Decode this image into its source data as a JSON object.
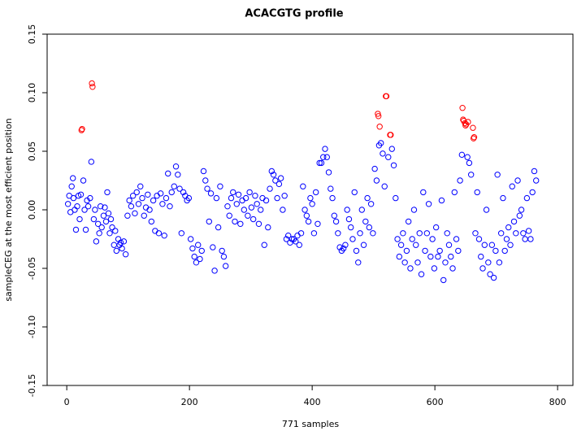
{
  "chart_data": {
    "type": "scatter",
    "title": "ACACGTG profile",
    "xlabel": "771 samples",
    "ylabel": "sampleCEG at the most efficient position",
    "xlim": [
      -32,
      825
    ],
    "ylim": [
      -0.15,
      0.15
    ],
    "xticks": [
      0,
      200,
      400,
      600,
      800
    ],
    "yticks": [
      {
        "value": -0.15,
        "label": "-0.15"
      },
      {
        "value": -0.1,
        "label": "-0.10"
      },
      {
        "value": -0.05,
        "label": "-0.05"
      },
      {
        "value": 0,
        "label": "0.00"
      },
      {
        "value": 0.05,
        "label": "0.05"
      },
      {
        "value": 0.1,
        "label": "0.10"
      },
      {
        "value": 0.15,
        "label": "0.15"
      }
    ],
    "series": [
      {
        "color": "#0000ff",
        "x": [
          2,
          4,
          6,
          8,
          10,
          11,
          13,
          15,
          17,
          19,
          21,
          23,
          27,
          29,
          31,
          33,
          35,
          38,
          40,
          44,
          46,
          48,
          51,
          53,
          55,
          57,
          60,
          62,
          64,
          66,
          68,
          70,
          72,
          74,
          77,
          79,
          81,
          84,
          86,
          88,
          90,
          93,
          96,
          99,
          102,
          105,
          108,
          111,
          114,
          117,
          120,
          123,
          126,
          129,
          132,
          135,
          138,
          141,
          144,
          147,
          150,
          153,
          156,
          159,
          162,
          165,
          168,
          171,
          175,
          178,
          181,
          184,
          187,
          190,
          193,
          196,
          199,
          202,
          205,
          208,
          211,
          214,
          217,
          220,
          223,
          226,
          229,
          232,
          235,
          238,
          241,
          244,
          247,
          250,
          253,
          256,
          259,
          262,
          265,
          268,
          271,
          274,
          277,
          280,
          283,
          286,
          289,
          292,
          295,
          298,
          301,
          304,
          307,
          310,
          313,
          316,
          319,
          322,
          325,
          328,
          331,
          334,
          337,
          340,
          343,
          346,
          349,
          352,
          355,
          358,
          361,
          364,
          367,
          370,
          373,
          376,
          379,
          382,
          385,
          388,
          391,
          394,
          397,
          400,
          403,
          406,
          409,
          412,
          415,
          418,
          421,
          424,
          427,
          430,
          433,
          436,
          439,
          442,
          445,
          448,
          451,
          454,
          457,
          460,
          463,
          466,
          469,
          472,
          475,
          478,
          481,
          484,
          487,
          490,
          493,
          496,
          499,
          502,
          505,
          509,
          512,
          515,
          518,
          524,
          530,
          533,
          536,
          539,
          542,
          545,
          548,
          551,
          554,
          557,
          560,
          563,
          566,
          569,
          572,
          575,
          578,
          581,
          584,
          587,
          590,
          593,
          596,
          599,
          602,
          605,
          608,
          611,
          614,
          617,
          620,
          623,
          626,
          629,
          632,
          635,
          638,
          641,
          644,
          653,
          656,
          659,
          666,
          669,
          672,
          675,
          678,
          681,
          684,
          687,
          690,
          693,
          696,
          699,
          702,
          705,
          708,
          711,
          714,
          717,
          720,
          723,
          726,
          729,
          732,
          735,
          738,
          741,
          744,
          747,
          750,
          753,
          756,
          759,
          762,
          765
        ],
        "values": [
          0.005,
          0.012,
          -0.002,
          0.02,
          0.027,
          0.01,
          0.0,
          -0.017,
          0.003,
          0.012,
          -0.008,
          0.013,
          0.025,
          0.0,
          -0.017,
          0.008,
          0.003,
          0.01,
          0.041,
          -0.008,
          0.0,
          -0.027,
          -0.012,
          -0.02,
          0.003,
          -0.015,
          -0.005,
          0.002,
          -0.01,
          0.015,
          -0.003,
          -0.02,
          -0.008,
          -0.015,
          -0.03,
          -0.018,
          -0.035,
          -0.025,
          -0.03,
          -0.028,
          -0.033,
          -0.027,
          -0.038,
          -0.005,
          0.008,
          0.003,
          0.012,
          -0.003,
          0.015,
          0.005,
          0.02,
          0.01,
          -0.005,
          0.002,
          0.013,
          0.0,
          -0.01,
          0.008,
          -0.018,
          0.012,
          -0.02,
          0.014,
          0.005,
          -0.022,
          0.01,
          0.031,
          0.003,
          0.015,
          0.02,
          0.037,
          0.03,
          0.018,
          -0.02,
          0.015,
          0.012,
          0.008,
          0.01,
          -0.025,
          -0.033,
          -0.04,
          -0.045,
          -0.03,
          -0.042,
          -0.035,
          0.033,
          0.025,
          0.018,
          -0.01,
          0.014,
          -0.032,
          -0.052,
          0.01,
          -0.015,
          0.02,
          -0.035,
          -0.04,
          -0.048,
          0.003,
          -0.005,
          0.01,
          0.015,
          -0.01,
          0.005,
          0.013,
          -0.012,
          0.008,
          0.0,
          0.01,
          -0.005,
          0.015,
          0.002,
          -0.008,
          0.012,
          0.005,
          -0.012,
          0.0,
          0.01,
          -0.03,
          0.008,
          -0.015,
          0.018,
          0.033,
          0.03,
          0.025,
          0.01,
          0.022,
          0.027,
          0.0,
          0.012,
          -0.025,
          -0.022,
          -0.028,
          -0.025,
          -0.025,
          -0.027,
          -0.022,
          -0.03,
          -0.02,
          0.02,
          0.0,
          -0.005,
          -0.01,
          0.01,
          0.005,
          -0.02,
          0.015,
          -0.012,
          0.04,
          0.04,
          0.045,
          0.052,
          0.045,
          0.032,
          0.018,
          0.01,
          -0.005,
          -0.01,
          -0.02,
          -0.032,
          -0.035,
          -0.033,
          -0.03,
          0.0,
          -0.008,
          -0.015,
          -0.025,
          0.015,
          -0.035,
          -0.045,
          -0.02,
          0.0,
          -0.03,
          -0.01,
          0.01,
          -0.015,
          0.005,
          -0.02,
          0.035,
          0.025,
          0.055,
          0.057,
          0.048,
          0.02,
          0.045,
          0.052,
          0.038,
          0.01,
          -0.025,
          -0.04,
          -0.03,
          -0.02,
          -0.045,
          -0.035,
          -0.01,
          -0.05,
          -0.025,
          0.0,
          -0.03,
          -0.045,
          -0.02,
          -0.055,
          0.015,
          -0.035,
          -0.02,
          0.005,
          -0.04,
          -0.025,
          -0.05,
          -0.015,
          -0.04,
          -0.035,
          0.008,
          -0.06,
          -0.045,
          -0.02,
          -0.03,
          -0.04,
          -0.05,
          0.015,
          -0.025,
          -0.035,
          0.025,
          0.047,
          0.045,
          0.04,
          0.03,
          -0.02,
          0.015,
          -0.025,
          -0.04,
          -0.05,
          -0.03,
          0.0,
          -0.045,
          -0.055,
          -0.03,
          -0.058,
          -0.035,
          0.03,
          -0.045,
          -0.02,
          0.01,
          -0.035,
          -0.025,
          -0.015,
          -0.03,
          0.02,
          -0.01,
          -0.02,
          0.025,
          -0.005,
          0.0,
          -0.02,
          -0.025,
          0.01,
          -0.018,
          -0.025,
          0.015,
          0.033,
          0.025
        ]
      },
      {
        "color": "#ff0000",
        "x": [
          24,
          25,
          41,
          42,
          507,
          508,
          510,
          520,
          521,
          527,
          528,
          645,
          646,
          647,
          649,
          650,
          651,
          654,
          662,
          663,
          664
        ],
        "values": [
          0.068,
          0.069,
          0.108,
          0.105,
          0.082,
          0.08,
          0.071,
          0.097,
          0.097,
          0.064,
          0.064,
          0.087,
          0.077,
          0.076,
          0.074,
          0.072,
          0.073,
          0.075,
          0.07,
          0.061,
          0.062
        ]
      }
    ]
  }
}
